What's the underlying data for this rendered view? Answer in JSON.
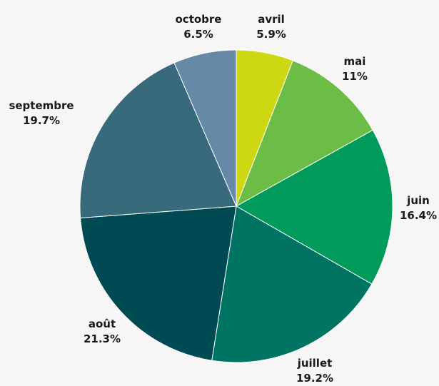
{
  "chart_data": {
    "type": "pie",
    "title": "",
    "start": "12 o'clock",
    "direction": "clockwise",
    "slices": [
      {
        "label": "avril",
        "value_label": "5.9%",
        "value": 5.9,
        "color": "#cdd812"
      },
      {
        "label": "mai",
        "value_label": "11%",
        "value": 11,
        "color": "#6cbd45"
      },
      {
        "label": "juin",
        "value_label": "16.4%",
        "value": 16.4,
        "color": "#009a5a"
      },
      {
        "label": "juillet",
        "value_label": "19.2%",
        "value": 19.2,
        "color": "#007463"
      },
      {
        "label": "août",
        "value_label": "21.3%",
        "value": 21.3,
        "color": "#004a53"
      },
      {
        "label": "septembre",
        "value_label": "19.7%",
        "value": 19.7,
        "color": "#376a7a"
      },
      {
        "label": "octobre",
        "value_label": "6.5%",
        "value": 6.5,
        "color": "#6689a8"
      }
    ]
  }
}
